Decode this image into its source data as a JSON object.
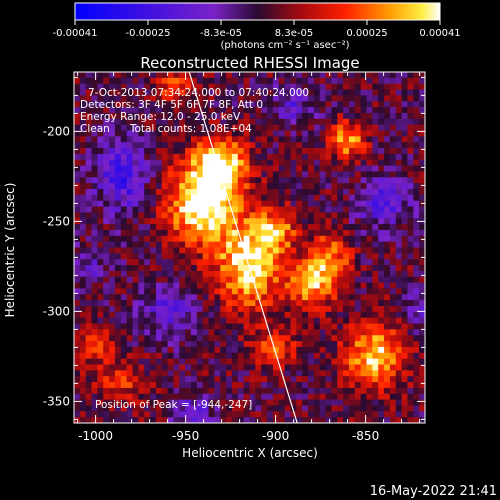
{
  "colorbar": {
    "ticks": [
      "-0.00041",
      "-0.00025",
      "-8.3e-05",
      "8.3e-05",
      "0.00025",
      "0.00041"
    ],
    "units": "(photons cm⁻² s⁻¹ asec⁻²)"
  },
  "title": "Reconstructed RHESSI Image",
  "annotations": [
    "7-Oct-2013 07:34:24.000 to 07:40:24.000",
    "Detectors: 3F 4F 5F 6F 7F 8F, Att 0",
    "Energy Range: 12.0 - 25.0 keV",
    "Clean      Total counts: 1.08E+04"
  ],
  "peak_label": "Position of Peak = [-944,-247]",
  "footer": "16-May-2022 21:41",
  "chart_data": {
    "type": "heatmap",
    "title": "Reconstructed RHESSI Image",
    "xlabel": "Heliocentric X (arcsec)",
    "ylabel": "Heliocentric Y (arcsec)",
    "xlim": [
      -1012,
      -817
    ],
    "ylim": [
      -362,
      -167
    ],
    "x_ticks": [
      -1000,
      -950,
      -900,
      -850
    ],
    "x_tick_labels": [
      "-1000",
      "-950",
      "-900",
      "-850"
    ],
    "y_ticks": [
      -200,
      -250,
      -300,
      -350
    ],
    "y_tick_labels": [
      "-200",
      "-250",
      "-300",
      "-350"
    ],
    "color_range": [
      -0.00041,
      0.00041
    ],
    "colormap": "RHESSI blue-purple-red-yellow-white",
    "grid": false,
    "limb_line": [
      [
        -948,
        -167
      ],
      [
        -888,
        -362
      ]
    ],
    "blobs": [
      {
        "x": -940,
        "y": -240,
        "sx": 14,
        "sy": 16,
        "amp": 1.0
      },
      {
        "x": -930,
        "y": -218,
        "sx": 10,
        "sy": 10,
        "amp": 0.75
      },
      {
        "x": -915,
        "y": -275,
        "sx": 12,
        "sy": 16,
        "amp": 0.85
      },
      {
        "x": -900,
        "y": -255,
        "sx": 8,
        "sy": 8,
        "amp": 0.6
      },
      {
        "x": -880,
        "y": -285,
        "sx": 10,
        "sy": 10,
        "amp": 0.6
      },
      {
        "x": -870,
        "y": -270,
        "sx": 8,
        "sy": 10,
        "amp": 0.55
      },
      {
        "x": -845,
        "y": -325,
        "sx": 12,
        "sy": 12,
        "amp": 0.75
      },
      {
        "x": -860,
        "y": -205,
        "sx": 7,
        "sy": 7,
        "amp": 0.65
      },
      {
        "x": -955,
        "y": -175,
        "sx": 8,
        "sy": 6,
        "amp": 0.45
      },
      {
        "x": -985,
        "y": -340,
        "sx": 10,
        "sy": 8,
        "amp": 0.35
      },
      {
        "x": -900,
        "y": -320,
        "sx": 10,
        "sy": 8,
        "amp": 0.4
      },
      {
        "x": -1000,
        "y": -320,
        "sx": 8,
        "sy": 8,
        "amp": 0.35
      }
    ],
    "cold_spots": [
      {
        "x": -985,
        "y": -225,
        "sx": 10,
        "sy": 14,
        "amp": 0.55
      },
      {
        "x": -960,
        "y": -300,
        "sx": 10,
        "sy": 10,
        "amp": 0.4
      },
      {
        "x": -890,
        "y": -185,
        "sx": 8,
        "sy": 8,
        "amp": 0.35
      },
      {
        "x": -840,
        "y": -240,
        "sx": 10,
        "sy": 10,
        "amp": 0.45
      },
      {
        "x": -945,
        "y": -355,
        "sx": 8,
        "sy": 6,
        "amp": 0.35
      },
      {
        "x": -820,
        "y": -300,
        "sx": 6,
        "sy": 8,
        "amp": 0.35
      },
      {
        "x": -1005,
        "y": -275,
        "sx": 8,
        "sy": 8,
        "amp": 0.3
      }
    ]
  }
}
